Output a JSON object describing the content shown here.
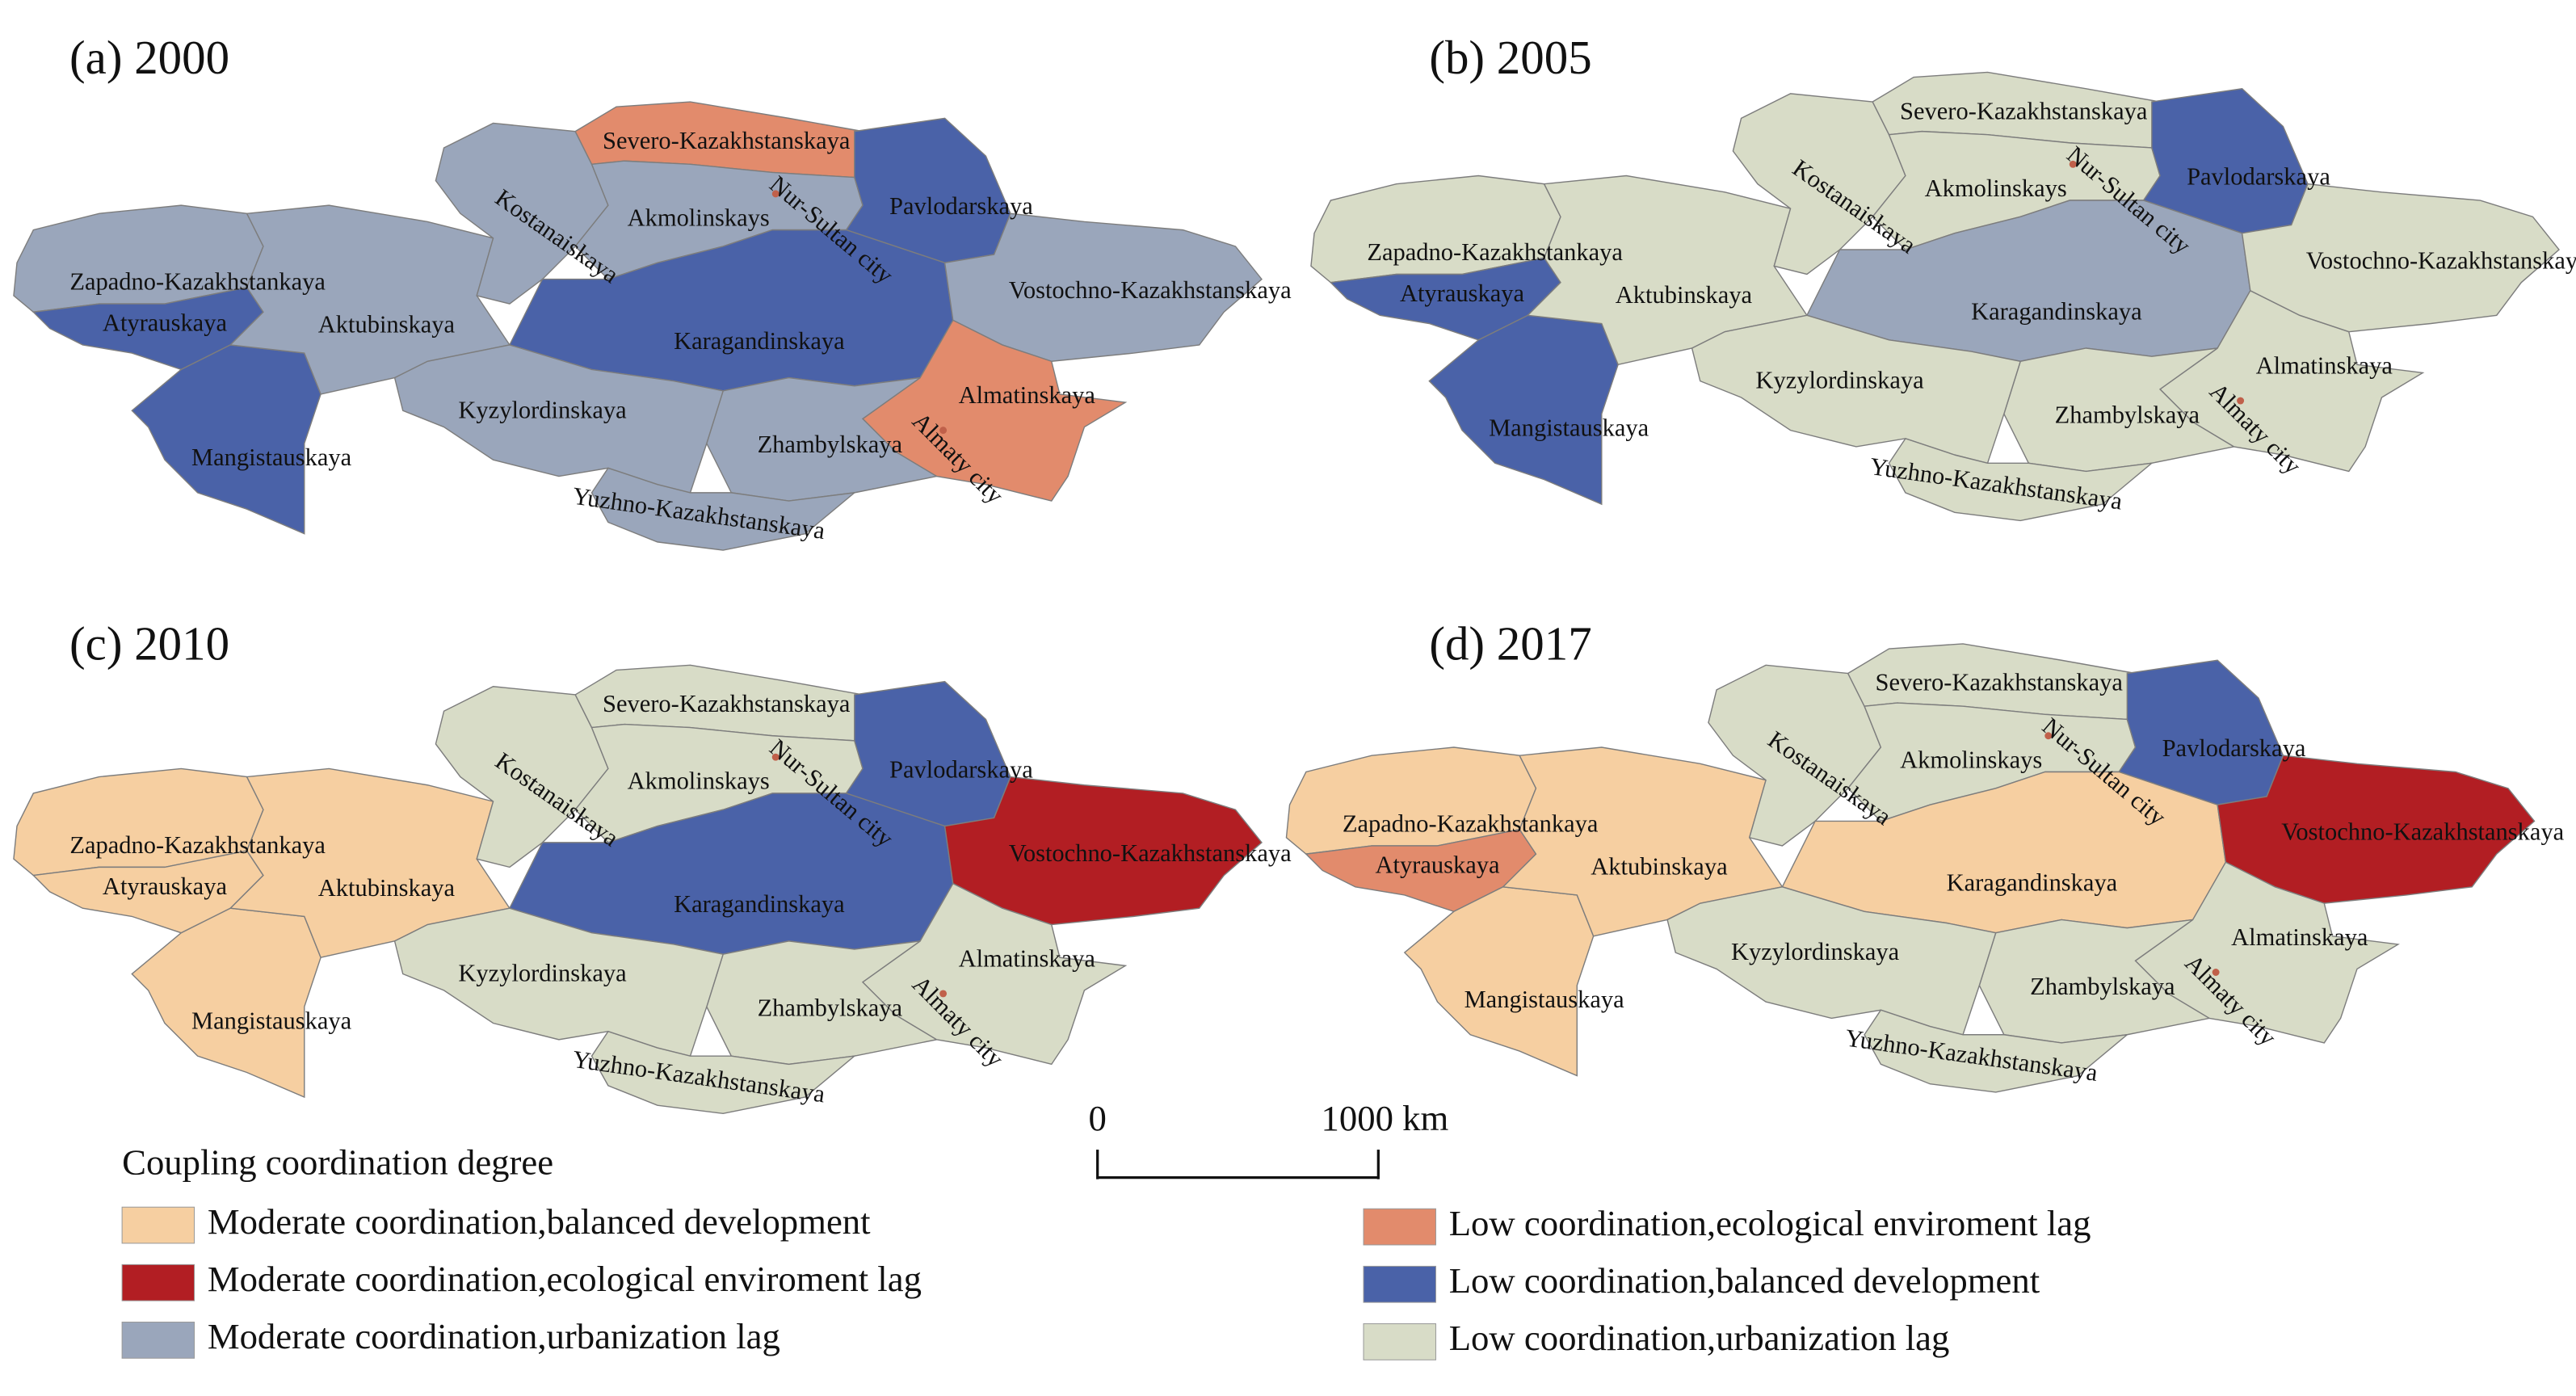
{
  "panels": [
    {
      "title": "(a) 2000",
      "regions": [
        {
          "name": "Zapadno-Kazakhstankaya",
          "color": "#9aa6bb"
        },
        {
          "name": "Atyrauskaya",
          "color": "#4a62a8"
        },
        {
          "name": "Mangistauskaya",
          "color": "#4a62a8"
        },
        {
          "name": "Aktubinskaya",
          "color": "#9aa6bb"
        },
        {
          "name": "Kostanaiskaya",
          "color": "#9aa6bb"
        },
        {
          "name": "Severo-Kazakhstanskaya",
          "color": "#e28b6c"
        },
        {
          "name": "Akmolinskays",
          "color": "#9aa6bb"
        },
        {
          "name": "Pavlodarskaya",
          "color": "#4a62a8"
        },
        {
          "name": "Karagandinskaya",
          "color": "#4a62a8"
        },
        {
          "name": "Vostochno-Kazakhstanskaya",
          "color": "#9aa6bb"
        },
        {
          "name": "Almatinskaya",
          "color": "#e28b6c"
        },
        {
          "name": "Zhambylskaya",
          "color": "#9aa6bb"
        },
        {
          "name": "Kyzylordinskaya",
          "color": "#9aa6bb"
        },
        {
          "name": "Yuzhno-Kazakhstanskaya",
          "color": "#9aa6bb"
        }
      ],
      "cities": [
        "Nur-Sultan city",
        "Almaty city"
      ]
    },
    {
      "title": "(b) 2005",
      "regions": [
        {
          "name": "Zapadno-Kazakhstankaya",
          "color": "#d8dcc7"
        },
        {
          "name": "Atyrauskaya",
          "color": "#4a62a8"
        },
        {
          "name": "Mangistauskaya",
          "color": "#4a62a8"
        },
        {
          "name": "Aktubinskaya",
          "color": "#d8dcc7"
        },
        {
          "name": "Kostanaiskaya",
          "color": "#d8dcc7"
        },
        {
          "name": "Severo-Kazakhstanskaya",
          "color": "#d8dcc7"
        },
        {
          "name": "Akmolinskays",
          "color": "#d8dcc7"
        },
        {
          "name": "Pavlodarskaya",
          "color": "#4a62a8"
        },
        {
          "name": "Karagandinskaya",
          "color": "#9aa6bb"
        },
        {
          "name": "Vostochno-Kazakhstanskaya",
          "color": "#d8dcc7"
        },
        {
          "name": "Almatinskaya",
          "color": "#d8dcc7"
        },
        {
          "name": "Zhambylskaya",
          "color": "#d8dcc7"
        },
        {
          "name": "Kyzylordinskaya",
          "color": "#d8dcc7"
        },
        {
          "name": "Yuzhno-Kazakhstanskaya",
          "color": "#d8dcc7"
        }
      ],
      "cities": [
        "Nur-Sultan city",
        "Almaty city"
      ]
    },
    {
      "title": "(c) 2010",
      "regions": [
        {
          "name": "Zapadno-Kazakhstankaya",
          "color": "#f6cfa1"
        },
        {
          "name": "Atyrauskaya",
          "color": "#f6cfa1"
        },
        {
          "name": "Mangistauskaya",
          "color": "#f6cfa1"
        },
        {
          "name": "Aktubinskaya",
          "color": "#f6cfa1"
        },
        {
          "name": "Kostanaiskaya",
          "color": "#d8dcc7"
        },
        {
          "name": "Severo-Kazakhstanskaya",
          "color": "#d8dcc7"
        },
        {
          "name": "Akmolinskays",
          "color": "#d8dcc7"
        },
        {
          "name": "Pavlodarskaya",
          "color": "#4a62a8"
        },
        {
          "name": "Karagandinskaya",
          "color": "#4a62a8"
        },
        {
          "name": "Vostochno-Kazakhstanskaya",
          "color": "#b21e23"
        },
        {
          "name": "Almatinskaya",
          "color": "#d8dcc7"
        },
        {
          "name": "Zhambylskaya",
          "color": "#d8dcc7"
        },
        {
          "name": "Kyzylordinskaya",
          "color": "#d8dcc7"
        },
        {
          "name": "Yuzhno-Kazakhstanskaya",
          "color": "#d8dcc7"
        }
      ],
      "cities": [
        "Nur-Sultan city",
        "Almaty city"
      ]
    },
    {
      "title": "(d) 2017",
      "regions": [
        {
          "name": "Zapadno-Kazakhstankaya",
          "color": "#f6cfa1"
        },
        {
          "name": "Atyrauskaya",
          "color": "#e28b6c"
        },
        {
          "name": "Mangistauskaya",
          "color": "#f6cfa1"
        },
        {
          "name": "Aktubinskaya",
          "color": "#f6cfa1"
        },
        {
          "name": "Kostanaiskaya",
          "color": "#d8dcc7"
        },
        {
          "name": "Severo-Kazakhstanskaya",
          "color": "#d8dcc7"
        },
        {
          "name": "Akmolinskays",
          "color": "#d8dcc7"
        },
        {
          "name": "Pavlodarskaya",
          "color": "#4a62a8"
        },
        {
          "name": "Karagandinskaya",
          "color": "#f6cfa1"
        },
        {
          "name": "Vostochno-Kazakhstanskaya",
          "color": "#b21e23"
        },
        {
          "name": "Almatinskaya",
          "color": "#d8dcc7"
        },
        {
          "name": "Zhambylskaya",
          "color": "#d8dcc7"
        },
        {
          "name": "Kyzylordinskaya",
          "color": "#d8dcc7"
        },
        {
          "name": "Yuzhno-Kazakhstanskaya",
          "color": "#d8dcc7"
        }
      ],
      "cities": [
        "Nur-Sultan city",
        "Almaty city"
      ]
    }
  ],
  "scale_bar": {
    "start_label": "0",
    "end_label": "1000 km"
  },
  "legend": {
    "title": "Coupling coordination degree",
    "items": [
      {
        "label": "Moderate coordination,balanced development",
        "color": "#f6cfa1"
      },
      {
        "label": "Moderate coordination,ecological enviroment lag",
        "color": "#b21e23"
      },
      {
        "label": "Moderate coordination,urbanization lag",
        "color": "#9aa6bb"
      },
      {
        "label": "Low coordination,ecological enviroment lag",
        "color": "#e28b6c"
      },
      {
        "label": "Low coordination,balanced development",
        "color": "#4a62a8"
      },
      {
        "label": "Low coordination,urbanization lag",
        "color": "#d8dcc7"
      }
    ]
  }
}
